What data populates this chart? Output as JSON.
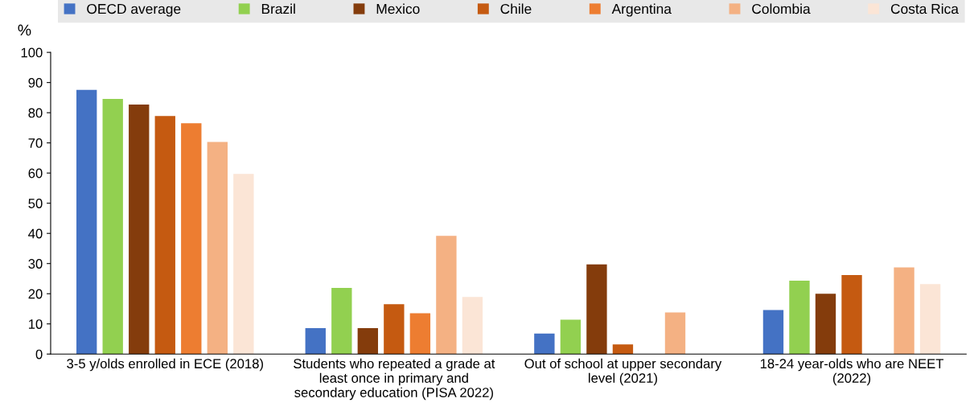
{
  "chart_data": {
    "type": "bar",
    "ylabel": "%",
    "categories": [
      "3-5 y/olds enrolled in ECE (2018)",
      "Students who repeated a grade at\nleast once in primary and\nsecondary education (PISA 2022)",
      "Out of school at upper secondary\nlevel (2021)",
      "18-24 year-olds who are NEET\n(2022)"
    ],
    "series": [
      {
        "name": "OECD average",
        "color": "#4472c4",
        "values": [
          87.6,
          8.6,
          6.8,
          14.6
        ]
      },
      {
        "name": "Brazil",
        "color": "#92d050",
        "values": [
          84.6,
          21.9,
          11.4,
          24.3
        ]
      },
      {
        "name": "Mexico",
        "color": "#843c0c",
        "values": [
          82.7,
          8.6,
          29.7,
          20.0
        ]
      },
      {
        "name": "Chile",
        "color": "#c55a11",
        "values": [
          78.9,
          16.5,
          3.2,
          26.2
        ]
      },
      {
        "name": "Argentina",
        "color": "#ed7d31",
        "values": [
          76.5,
          13.5,
          null,
          null
        ]
      },
      {
        "name": "Colombia",
        "color": "#f4b183",
        "values": [
          70.3,
          39.2,
          13.8,
          28.7
        ]
      },
      {
        "name": "Costa Rica",
        "color": "#fbe5d6",
        "values": [
          59.7,
          18.9,
          null,
          23.2
        ]
      }
    ],
    "ylim": [
      0,
      100
    ],
    "yticks": [
      0,
      10,
      20,
      30,
      40,
      50,
      60,
      70,
      80,
      90,
      100
    ],
    "grid": false,
    "legend": "top"
  }
}
